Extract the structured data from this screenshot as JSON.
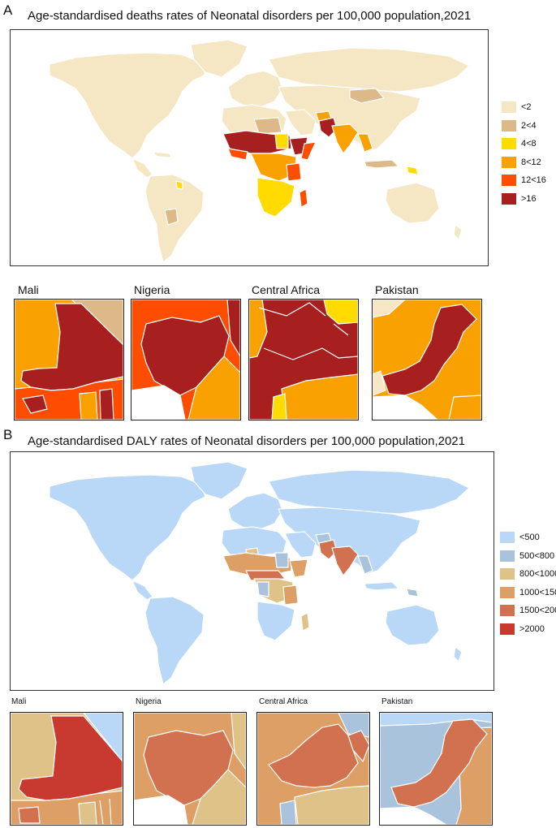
{
  "panels": [
    {
      "letter": "A",
      "title": "Age-standardised deaths rates of  Neonatal disorders per 100,000 population,2021",
      "legend": [
        {
          "label": "<2",
          "color": "#F5E6C4"
        },
        {
          "label": "2<4",
          "color": "#DDB98A"
        },
        {
          "label": "4<8",
          "color": "#FFDB00"
        },
        {
          "label": "8<12",
          "color": "#F8A100"
        },
        {
          "label": "12<16",
          "color": "#FF4D00"
        },
        {
          "label": ">16",
          "color": "#A81F1F"
        }
      ],
      "insets": [
        {
          "label": "Mali"
        },
        {
          "label": "Nigeria"
        },
        {
          "label": "Central Africa"
        },
        {
          "label": "Pakistan"
        }
      ]
    },
    {
      "letter": "B",
      "title": "Age-standardised DALY rates of  Neonatal disorders per 100,000 population,2021",
      "legend": [
        {
          "label": "<500",
          "color": "#B9D7F6"
        },
        {
          "label": "500<800",
          "color": "#A9C3DD"
        },
        {
          "label": "800<1000",
          "color": "#DFC287"
        },
        {
          "label": "1000<1500",
          "color": "#DD9F66"
        },
        {
          "label": "1500<2000",
          "color": "#D2714F"
        },
        {
          "label": ">2000",
          "color": "#C8392F"
        }
      ],
      "insets": [
        {
          "label": "Mali"
        },
        {
          "label": "Nigeria"
        },
        {
          "label": "Central Africa"
        },
        {
          "label": "Pakistan"
        }
      ]
    }
  ]
}
